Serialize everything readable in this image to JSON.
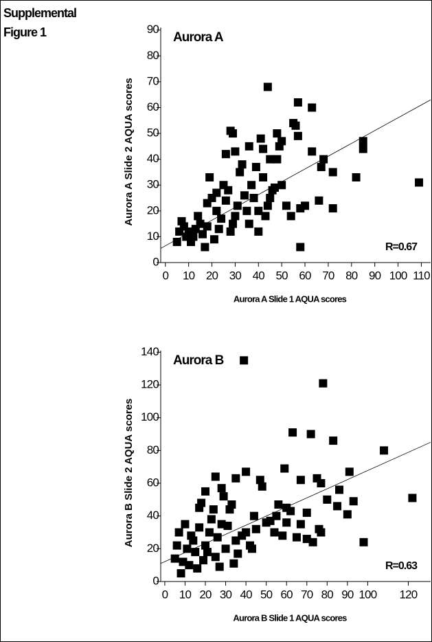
{
  "header": {
    "title_line1": "Supplemental",
    "title_line2": "Figure 1"
  },
  "chart_data": [
    {
      "type": "scatter",
      "title": "Aurora A",
      "annotation": "R=0.67",
      "x_label": "Aurora A Slide 1 AQUA scores",
      "y_label": "Aurora A Slide 2 AQUA scores",
      "color": "#000000",
      "xlim": [
        -2,
        114
      ],
      "ylim": [
        0,
        91
      ],
      "xticks": [
        0,
        10,
        20,
        30,
        40,
        50,
        60,
        70,
        80,
        90,
        100,
        110
      ],
      "yticks": [
        0,
        10,
        20,
        30,
        40,
        50,
        60,
        70,
        80,
        90
      ],
      "trendline": {
        "x": [
          -2,
          114
        ],
        "y": [
          5.5,
          63
        ]
      },
      "x": [
        44,
        57,
        63,
        55,
        56,
        28,
        29,
        41,
        48,
        57,
        85,
        85,
        68,
        67,
        72,
        63,
        49,
        50,
        45,
        36,
        42,
        26,
        30,
        82,
        109,
        66,
        72,
        58,
        60,
        54,
        58,
        40,
        52,
        47,
        45,
        37,
        32,
        25,
        20,
        18,
        22,
        15,
        10,
        5,
        7,
        12,
        17,
        23,
        30,
        35,
        38,
        42,
        46,
        50,
        19,
        33,
        27,
        14,
        8,
        11,
        24,
        28,
        31,
        36,
        40,
        44,
        21,
        16,
        13,
        9,
        6,
        26,
        34,
        29,
        22,
        18,
        48,
        39,
        43
      ],
      "values": [
        68,
        62,
        60,
        54,
        53,
        51,
        50,
        48,
        50,
        49,
        47,
        44,
        40,
        37,
        35,
        43,
        45,
        47,
        40,
        45,
        44,
        42,
        43,
        33,
        31,
        24,
        21,
        21,
        22,
        18,
        6,
        12,
        22,
        29,
        25,
        30,
        35,
        30,
        25,
        23,
        20,
        15,
        12,
        8,
        16,
        10,
        6,
        13,
        18,
        20,
        25,
        33,
        28,
        30,
        33,
        38,
        28,
        18,
        14,
        8,
        17,
        12,
        22,
        15,
        20,
        22,
        9,
        11,
        13,
        10,
        12,
        24,
        26,
        15,
        27,
        14,
        40,
        37,
        18
      ]
    },
    {
      "type": "scatter",
      "title": "Aurora B",
      "annotation": "R=0.63",
      "x_label": "Aurora B Slide 1 AQUA scores",
      "y_label": "Aurora B Slide 2 AQUA scores",
      "color": "#000000",
      "xlim": [
        -2,
        131
      ],
      "ylim": [
        0,
        141
      ],
      "xticks": [
        0,
        10,
        20,
        30,
        40,
        50,
        60,
        70,
        80,
        90,
        100,
        120
      ],
      "yticks": [
        0,
        20,
        40,
        60,
        80,
        100,
        120,
        140
      ],
      "trendline": {
        "x": [
          -2,
          131
        ],
        "y": [
          11,
          85
        ]
      },
      "x": [
        39,
        78,
        63,
        72,
        83,
        108,
        122,
        59,
        40,
        48,
        47,
        67,
        75,
        77,
        91,
        93,
        90,
        98,
        70,
        60,
        67,
        77,
        76,
        73,
        85,
        86,
        80,
        56,
        62,
        70,
        65,
        54,
        58,
        43,
        50,
        44,
        35,
        25,
        28,
        20,
        29,
        32,
        31,
        33,
        18,
        17,
        10,
        7,
        5,
        8,
        12,
        15,
        20,
        25,
        27,
        30,
        35,
        38,
        40,
        22,
        14,
        11,
        9,
        16,
        19,
        23,
        26,
        28,
        45,
        52,
        55,
        60,
        36,
        34,
        13,
        6,
        21,
        24,
        17,
        42
      ],
      "values": [
        135,
        121,
        91,
        90,
        86,
        80,
        51,
        69,
        67,
        58,
        62,
        62,
        63,
        60,
        67,
        49,
        41,
        24,
        42,
        45,
        35,
        30,
        32,
        24,
        46,
        56,
        50,
        47,
        43,
        26,
        27,
        30,
        28,
        20,
        36,
        40,
        63,
        64,
        57,
        55,
        52,
        44,
        34,
        47,
        48,
        45,
        35,
        30,
        14,
        5,
        10,
        18,
        22,
        15,
        9,
        20,
        25,
        28,
        30,
        30,
        25,
        20,
        12,
        8,
        13,
        38,
        27,
        35,
        32,
        37,
        40,
        36,
        17,
        11,
        28,
        22,
        18,
        44,
        33,
        22
      ]
    }
  ]
}
